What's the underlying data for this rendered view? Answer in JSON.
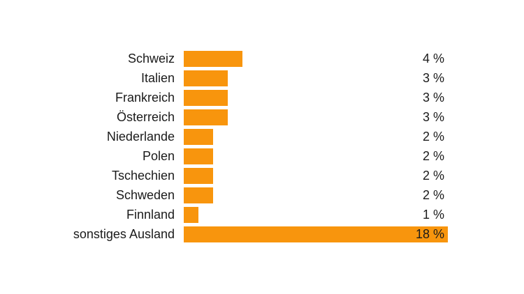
{
  "page": {
    "background_color": "#ffffff",
    "text_color": "#1a1a1a"
  },
  "chart_data": {
    "type": "bar",
    "orientation": "horizontal",
    "title": "",
    "xlabel": "",
    "ylabel": "",
    "grid": false,
    "legend": false,
    "xlim": [
      0,
      18
    ],
    "unit": "%",
    "bar_color": "#F8950D",
    "label_color": "#1a1a1a",
    "categories": [
      "Schweiz",
      "Italien",
      "Frankreich",
      "Österreich",
      "Niederlande",
      "Polen",
      "Tschechien",
      "Schweden",
      "Finnland",
      "sonstiges Ausland"
    ],
    "values": [
      4,
      3,
      3,
      3,
      2,
      2,
      2,
      2,
      1,
      18
    ],
    "value_labels": [
      "4 %",
      "3 %",
      "3 %",
      "3 %",
      "2 %",
      "2 %",
      "2 %",
      "2 %",
      "1 %",
      "18 %"
    ]
  }
}
